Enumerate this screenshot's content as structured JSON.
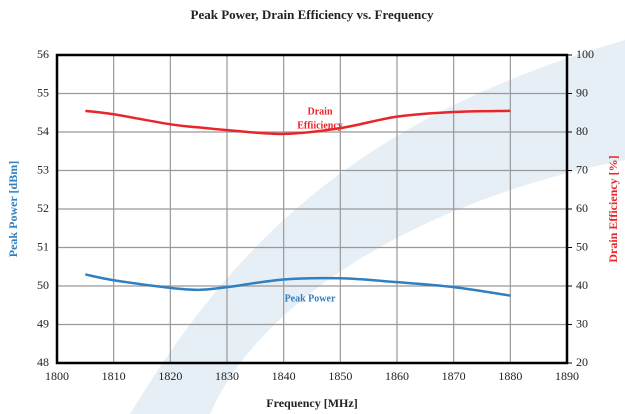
{
  "chart_data": {
    "type": "line",
    "title": "Peak Power, Drain Efficiency vs. Frequency",
    "x_label": "Frequency [MHz]",
    "y_label": "Peak Power [dBm]",
    "y2_label": "Drain Efficiency [%]",
    "annotations": [
      "Drain",
      "Effiiciency",
      "Peak Power"
    ],
    "x": [
      1805,
      1810,
      1820,
      1825,
      1830,
      1840,
      1850,
      1860,
      1870,
      1880
    ],
    "series": [
      {
        "name": "Peak Power",
        "color": "#2f7fc1",
        "values": [
          50.3,
          50.15,
          49.95,
          49.9,
          49.97,
          50.17,
          50.2,
          50.1,
          49.97,
          49.75
        ]
      },
      {
        "name": "Drain Efficiency",
        "color": "#e8262a",
        "axis": "y2",
        "values": [
          85.5,
          84.6,
          82,
          81.2,
          80.5,
          79.5,
          81,
          84,
          85.2,
          85.5
        ]
      }
    ],
    "xlim": [
      1800,
      1890
    ],
    "xticks": [
      1800,
      1810,
      1820,
      1830,
      1840,
      1850,
      1860,
      1870,
      1880,
      1890
    ],
    "ylim": [
      48,
      56
    ],
    "yticks": [
      48,
      49,
      50,
      51,
      52,
      53,
      54,
      55,
      56
    ],
    "y2lim": [
      20,
      100
    ],
    "y2ticks": [
      20,
      30,
      40,
      50,
      60,
      70,
      80,
      90,
      100
    ],
    "grid": true
  }
}
